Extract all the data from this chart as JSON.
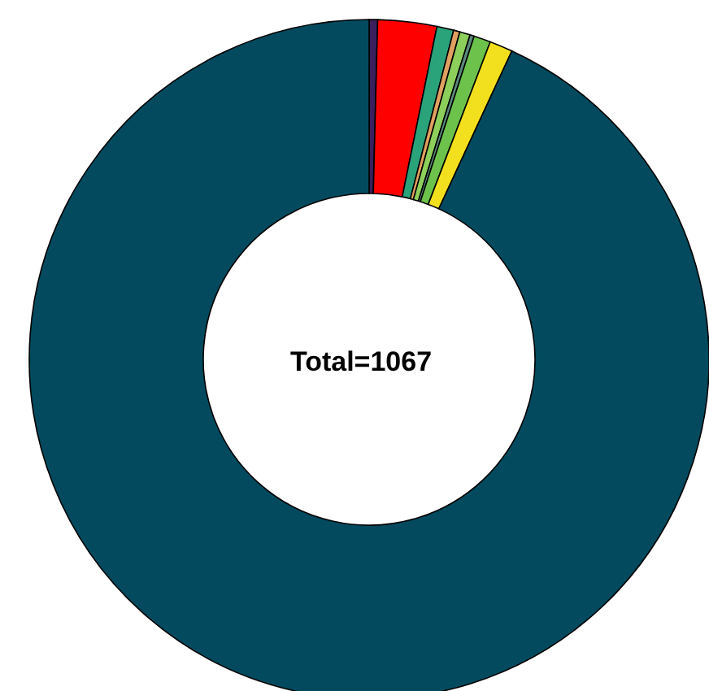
{
  "chart_data": {
    "type": "donut",
    "categories": [
      null,
      null,
      null,
      null,
      null,
      null,
      null,
      null,
      null
    ],
    "values": [
      0.4,
      2.8,
      0.8,
      0.3,
      0.5,
      0.2,
      0.8,
      1.1,
      93.1
    ],
    "colors": [
      "#3a1f5c",
      "#ff0000",
      "#2aa37a",
      "#e0a060",
      "#8ccf5a",
      "#5a8a7a",
      "#6cc24a",
      "#f2e01e",
      "#034a5e"
    ],
    "annotations": [
      "Total=1067"
    ]
  }
}
